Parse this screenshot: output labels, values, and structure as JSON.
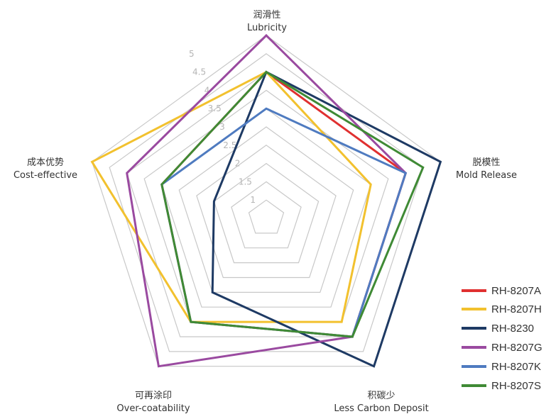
{
  "chart_data": {
    "type": "radar",
    "title": "",
    "axes": [
      {
        "zh": "润滑性",
        "en": "Lubricity"
      },
      {
        "zh": "脱模性",
        "en": "Mold Release"
      },
      {
        "zh": "积碳少",
        "en": "Less Carbon Deposit"
      },
      {
        "zh": "可再涂印",
        "en": "Over-coatability"
      },
      {
        "zh": "成本优势",
        "en": "Cost-effective"
      }
    ],
    "range": [
      0.5,
      5.5
    ],
    "ticks": [
      "1",
      "1.5",
      "2",
      "2.5",
      "3",
      "3.5",
      "4",
      "4.5",
      "5"
    ],
    "tick_values": [
      1,
      1.5,
      2,
      2.5,
      3,
      3.5,
      4,
      4.5,
      5
    ],
    "legend_position": "bottom-right",
    "series": [
      {
        "name": "RH-8207A",
        "color": "#e03030",
        "values": [
          4.5,
          4.5,
          4.5,
          4.0,
          3.5
        ]
      },
      {
        "name": "RH-8207H",
        "color": "#f2c12e",
        "values": [
          4.5,
          3.5,
          4.0,
          4.0,
          5.5
        ]
      },
      {
        "name": "RH-8230",
        "color": "#1e3a64",
        "values": [
          4.5,
          5.5,
          5.5,
          3.0,
          2.0
        ]
      },
      {
        "name": "RH-8207G",
        "color": "#9a4aa0",
        "values": [
          5.5,
          4.5,
          4.5,
          5.5,
          4.5
        ]
      },
      {
        "name": "RH-8207K",
        "color": "#4f7bc0",
        "values": [
          3.5,
          4.5,
          4.5,
          4.0,
          3.5
        ]
      },
      {
        "name": "RH-8207S",
        "color": "#3f8a35",
        "values": [
          4.5,
          5.0,
          4.5,
          4.0,
          3.5
        ]
      }
    ]
  }
}
